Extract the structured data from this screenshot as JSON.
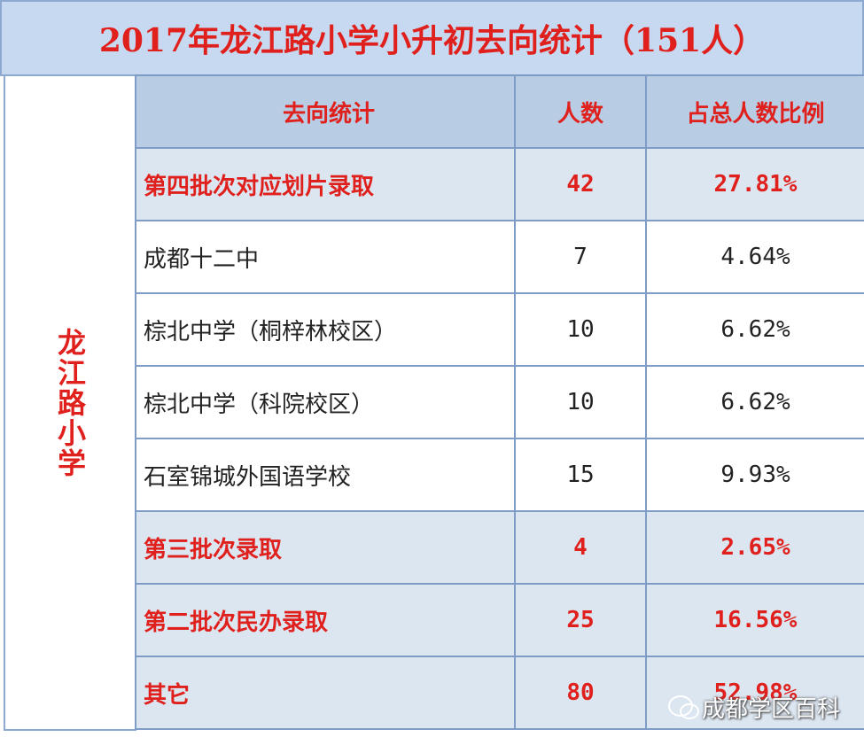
{
  "title": "2017年龙江路小学小升初去向统计（151人）",
  "side_label": "龙江路小学",
  "table": {
    "header": [
      "去向统计",
      "人数",
      "占总人数比例"
    ],
    "rows": [
      {
        "cells": [
          "第四批次对应划片录取",
          "42",
          "27.81%"
        ],
        "highlight": true
      },
      {
        "cells": [
          "成都十二中",
          "7",
          "4.64%"
        ],
        "highlight": false
      },
      {
        "cells": [
          "棕北中学（桐梓林校区）",
          "10",
          "6.62%"
        ],
        "highlight": false
      },
      {
        "cells": [
          "棕北中学（科院校区）",
          "10",
          "6.62%"
        ],
        "highlight": false
      },
      {
        "cells": [
          "石室锦城外国语学校",
          "15",
          "9.93%"
        ],
        "highlight": false
      },
      {
        "cells": [
          "第三批次录取",
          "4",
          "2.65%"
        ],
        "highlight": true
      },
      {
        "cells": [
          "第二批次民办录取",
          "25",
          "16.56%"
        ],
        "highlight": true
      },
      {
        "cells": [
          "其它",
          "80",
          "52.98%"
        ],
        "highlight": true
      }
    ]
  },
  "watermark": "成都学区百科"
}
